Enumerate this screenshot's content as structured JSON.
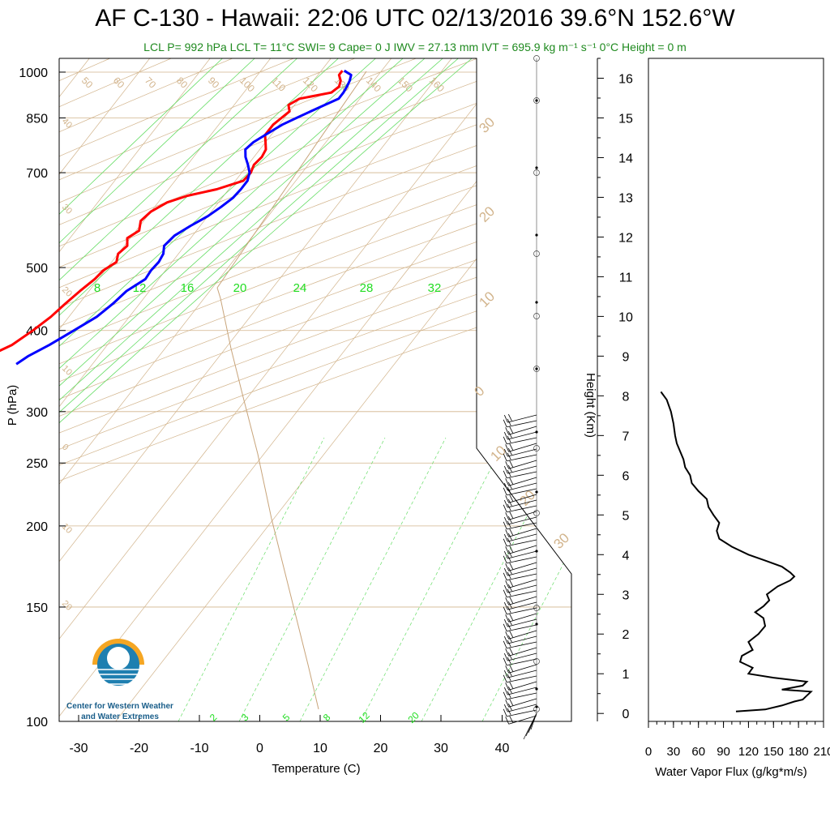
{
  "title": "AF C-130 - Hawaii: 22:06 UTC 02/13/2016  39.6°N 152.6°W",
  "subtitle": "LCL P= 992 hPa  LCL T= 11°C  SWI= 9  Cape= 0 J  IWV = 27.13 mm  IVT = 695.9 kg m⁻¹ s⁻¹  0°C Height = 0 m",
  "logo": {
    "line1": "Center for Western Weather",
    "line2": "and Water Extremes"
  },
  "colors": {
    "temperature": "#ff0000",
    "dewpoint": "#0000ff",
    "isotherm": "#d2b48c",
    "mixing_ratio": "#66dd66",
    "flux": "#000000"
  },
  "chart_data": [
    {
      "type": "line",
      "title": "Skew-T",
      "xlabel": "Temperature (C)",
      "ylabel": "P (hPa)",
      "xlim": [
        -35,
        45
      ],
      "ylim": [
        1050,
        100
      ],
      "y_scale": "log",
      "x_ticks": [
        -30,
        -20,
        -10,
        0,
        10,
        20,
        30,
        40
      ],
      "y_ticks": [
        100,
        150,
        200,
        250,
        300,
        400,
        500,
        700,
        850,
        1000
      ],
      "mixing_ratio_labels": [
        "8",
        "12",
        "16",
        "20",
        "24",
        "28",
        "32"
      ],
      "mixing_ratio_low_labels": [
        "2",
        "3",
        "5",
        "8",
        "12",
        "20"
      ],
      "isotherm_labels": [
        "50",
        "60",
        "70",
        "80",
        "90",
        "100",
        "110",
        "120",
        "130",
        "140",
        "150",
        "160"
      ],
      "right_axis_labels": [
        "30",
        "20",
        "10",
        "0",
        "10",
        "20",
        "30"
      ],
      "left_axis_labels": [
        "40",
        "30",
        "20",
        "10",
        "0",
        "10",
        "20"
      ],
      "series": [
        {
          "name": "Temperature",
          "p": [
            1005,
            990,
            970,
            950,
            930,
            910,
            890,
            870,
            850,
            830,
            800,
            780,
            760,
            740,
            720,
            700,
            680,
            660,
            645,
            630,
            610,
            590,
            570,
            555,
            540,
            525,
            510,
            495,
            480,
            460,
            440,
            420,
            400,
            380,
            365,
            355
          ],
          "t": [
            13.5,
            13.5,
            14.5,
            15,
            14.5,
            10,
            9,
            10,
            9.5,
            9,
            9,
            10,
            11,
            11.3,
            11,
            11.5,
            11.3,
            8,
            4,
            1.5,
            0,
            -0.5,
            0.5,
            -0.5,
            0.5,
            0,
            0.8,
            -0.3,
            -0.6,
            -1.5,
            -2.3,
            -3,
            -4.2,
            -5.8,
            -8.3,
            -9.2
          ]
        },
        {
          "name": "Dewpoint",
          "p": [
            1005,
            990,
            970,
            950,
            930,
            910,
            890,
            870,
            850,
            830,
            800,
            780,
            760,
            740,
            720,
            700,
            680,
            660,
            640,
            620,
            600,
            580,
            560,
            540,
            525,
            510,
            495,
            480,
            460,
            440,
            420,
            400,
            380,
            365,
            355
          ],
          "t": [
            13.8,
            15.5,
            16,
            16.3,
            16.5,
            16.5,
            15,
            13.5,
            12,
            10.5,
            9,
            8,
            7.6,
            8.6,
            10,
            11.3,
            12,
            12,
            11.8,
            11,
            10,
            8.4,
            7,
            6.6,
            7.5,
            7.8,
            7.6,
            7.8,
            6.2,
            5.6,
            4.6,
            2.6,
            0.4,
            -1.7,
            -2.6
          ]
        }
      ],
      "wind_barbs": "present"
    },
    {
      "type": "line",
      "title": "",
      "xlabel": "Water Vapor Flux (g/kg*m/s)",
      "ylabel": "Height (Km)",
      "xlim": [
        0,
        210
      ],
      "ylim": [
        -0.2,
        16.5
      ],
      "x_ticks": [
        0,
        30,
        60,
        90,
        120,
        150,
        180,
        210
      ],
      "y_ticks": [
        0,
        1,
        2,
        3,
        4,
        5,
        6,
        7,
        8,
        9,
        10,
        11,
        12,
        13,
        14,
        15,
        16
      ],
      "series": [
        {
          "name": "Water Vapor Flux",
          "height_km": [
            0.05,
            0.1,
            0.2,
            0.3,
            0.35,
            0.45,
            0.55,
            0.6,
            0.7,
            0.8,
            0.9,
            1.0,
            1.15,
            1.3,
            1.45,
            1.6,
            1.8,
            2.0,
            2.2,
            2.4,
            2.55,
            2.7,
            2.85,
            3.0,
            3.2,
            3.35,
            3.45,
            3.55,
            3.7,
            3.85,
            4.0,
            4.2,
            4.4,
            4.6,
            4.8,
            5.0,
            5.2,
            5.4,
            5.6,
            5.8,
            6.0,
            6.2,
            6.4,
            6.6,
            6.8,
            7.0,
            7.3,
            7.6,
            7.9,
            8.1
          ],
          "flux": [
            105,
            140,
            160,
            175,
            185,
            190,
            195,
            160,
            185,
            190,
            150,
            120,
            125,
            110,
            112,
            125,
            120,
            132,
            140,
            138,
            128,
            138,
            145,
            142,
            155,
            170,
            175,
            170,
            160,
            140,
            120,
            100,
            85,
            82,
            85,
            78,
            72,
            70,
            60,
            52,
            50,
            44,
            42,
            38,
            34,
            32,
            30,
            27,
            22,
            15
          ]
        }
      ]
    }
  ]
}
